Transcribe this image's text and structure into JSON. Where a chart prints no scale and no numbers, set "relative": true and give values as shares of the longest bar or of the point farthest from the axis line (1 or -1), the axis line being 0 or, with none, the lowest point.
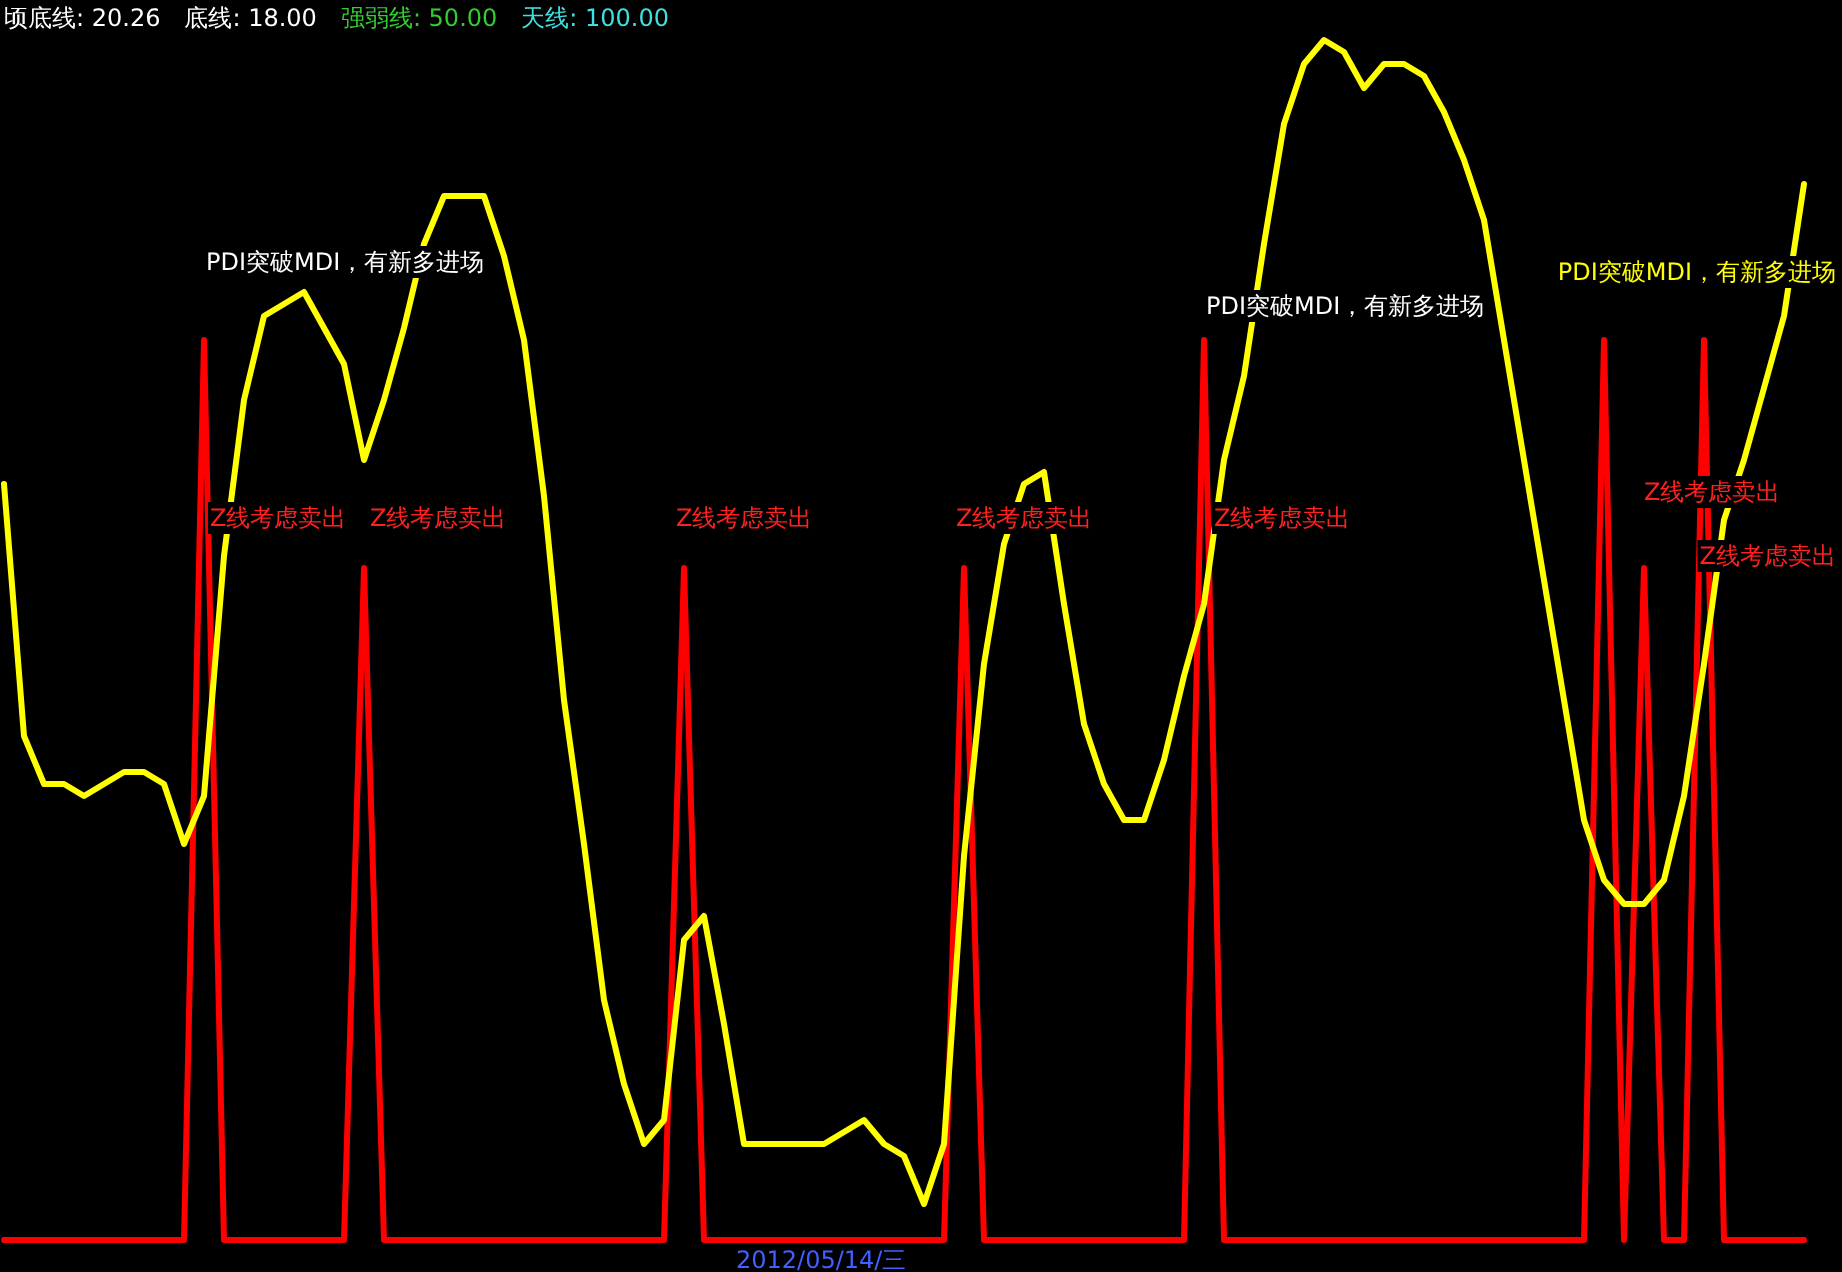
{
  "chart_data": {
    "type": "line",
    "relative": true,
    "tick_labels": false,
    "categories": [
      null,
      null,
      null,
      null,
      null,
      null,
      null,
      null,
      null,
      null,
      null,
      null,
      null,
      null,
      null,
      null,
      null,
      null,
      null,
      null,
      null,
      null,
      null,
      null,
      null,
      null,
      null,
      null,
      null,
      null,
      null,
      null,
      null,
      null,
      null,
      null,
      null,
      null,
      null,
      null,
      null,
      null,
      null,
      null,
      null,
      null,
      null,
      null,
      null,
      null,
      null,
      null,
      null,
      null,
      null,
      null,
      null,
      null,
      null,
      null,
      null,
      null,
      null,
      null,
      null,
      null,
      null,
      null,
      null,
      null,
      null,
      null,
      null,
      null,
      null,
      null,
      null,
      null,
      null,
      null,
      null,
      null,
      null,
      null,
      null,
      null,
      null,
      null,
      null,
      null,
      null
    ],
    "series": [
      {
        "color": "#ff0000",
        "values": [
          0,
          0,
          0,
          0,
          0,
          0,
          0,
          0,
          0,
          0,
          0.75,
          0,
          0,
          0,
          0,
          0,
          0,
          0,
          0.56,
          0,
          0,
          0,
          0,
          0,
          0,
          0,
          0,
          0,
          0,
          0,
          0,
          0,
          0,
          0,
          0.56,
          0,
          0,
          0,
          0,
          0,
          0,
          0,
          0,
          0,
          0,
          0,
          0,
          0,
          0.56,
          0,
          0,
          0,
          0,
          0,
          0,
          0,
          0,
          0,
          0,
          0,
          0.75,
          0,
          0,
          0,
          0,
          0,
          0,
          0,
          0,
          0,
          0,
          0,
          0,
          0,
          0,
          0,
          0,
          0,
          0,
          0,
          0.75,
          0,
          0.56,
          0,
          0,
          0.75,
          0,
          0,
          0,
          0,
          0
        ]
      },
      {
        "color": "#ffff00",
        "values": [
          0.63,
          0.42,
          0.38,
          0.38,
          0.37,
          0.38,
          0.39,
          0.39,
          0.38,
          0.33,
          0.37,
          0.57,
          0.7,
          0.77,
          0.78,
          0.79,
          0.76,
          0.73,
          0.65,
          0.7,
          0.76,
          0.83,
          0.87,
          0.87,
          0.87,
          0.82,
          0.75,
          0.62,
          0.45,
          0.33,
          0.2,
          0.13,
          0.08,
          0.1,
          0.25,
          0.27,
          0.18,
          0.08,
          0.08,
          0.08,
          0.08,
          0.08,
          0.09,
          0.1,
          0.08,
          0.07,
          0.03,
          0.08,
          0.32,
          0.48,
          0.58,
          0.63,
          0.64,
          0.53,
          0.43,
          0.38,
          0.35,
          0.35,
          0.4,
          0.47,
          0.53,
          0.65,
          0.72,
          0.83,
          0.93,
          0.98,
          1,
          0.99,
          0.96,
          0.98,
          0.98,
          0.97,
          0.94,
          0.9,
          0.85,
          0.75,
          0.65,
          0.55,
          0.45,
          0.35,
          0.3,
          0.28,
          0.28,
          0.3,
          0.37,
          0.48,
          0.6,
          0.65,
          0.71,
          0.77,
          0.88
        ]
      }
    ],
    "annotations": [
      "顷底线: 20.26",
      "底线: 18.00",
      "强弱线: 50.00",
      "天线: 100.00",
      "PDI突破MDI，有新多进场",
      "PDI突破MDI，有新多进场",
      "PDI突破MDI，有新多进场",
      "Z线考虑卖出",
      "Z线考虑卖出",
      "Z线考虑卖出",
      "Z线考虑卖出",
      "Z线考虑卖出",
      "Z线考虑卖出",
      "Z线考虑卖出",
      "2012/05/14/三"
    ]
  }
}
